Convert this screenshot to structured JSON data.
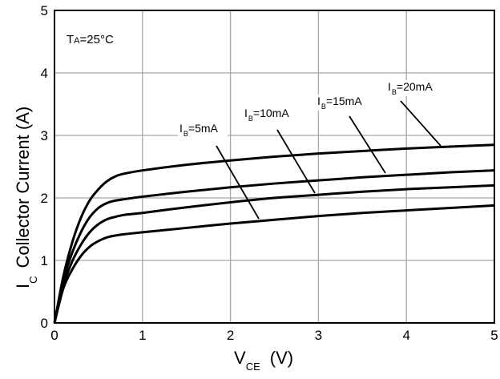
{
  "chart_data": {
    "type": "line",
    "xlim": [
      0,
      5
    ],
    "ylim": [
      0,
      5
    ],
    "xticks": [
      "0",
      "1",
      "2",
      "3",
      "4",
      "5"
    ],
    "yticks": [
      "0",
      "1",
      "2",
      "3",
      "4",
      "5"
    ],
    "xlabel": {
      "main": "V",
      "sub": "CE",
      "unit": "(V)"
    },
    "ylabel": {
      "main": "I",
      "sub": "C",
      "rest": "Collector Current (A)"
    },
    "grid": true,
    "annotation": {
      "main": "T",
      "sub": "A",
      "rest": "=25°C"
    },
    "series": [
      {
        "name": "I_B=5mA",
        "label": {
          "main": "I",
          "sub": "B",
          "rest": "=5mA"
        },
        "x": [
          0,
          0.1,
          0.2,
          0.3,
          0.4,
          0.5,
          0.6,
          0.7,
          0.8,
          1.0,
          1.5,
          2.0,
          2.5,
          3.0,
          3.5,
          4.0,
          4.5,
          5.0
        ],
        "y": [
          0,
          0.55,
          0.85,
          1.07,
          1.22,
          1.31,
          1.37,
          1.4,
          1.42,
          1.45,
          1.52,
          1.59,
          1.65,
          1.71,
          1.76,
          1.8,
          1.84,
          1.88
        ]
      },
      {
        "name": "I_B=10mA",
        "label": {
          "main": "I",
          "sub": "B",
          "rest": "=10mA"
        },
        "x": [
          0,
          0.1,
          0.2,
          0.3,
          0.4,
          0.5,
          0.6,
          0.7,
          0.8,
          1.0,
          1.5,
          2.0,
          2.5,
          3.0,
          3.5,
          4.0,
          4.5,
          5.0
        ],
        "y": [
          0,
          0.6,
          0.98,
          1.25,
          1.45,
          1.58,
          1.66,
          1.7,
          1.73,
          1.76,
          1.85,
          1.93,
          2.0,
          2.05,
          2.1,
          2.14,
          2.17,
          2.2
        ]
      },
      {
        "name": "I_B=15mA",
        "label": {
          "main": "I",
          "sub": "B",
          "rest": "=15mA"
        },
        "x": [
          0,
          0.1,
          0.2,
          0.3,
          0.4,
          0.5,
          0.6,
          0.7,
          0.8,
          1.0,
          1.5,
          2.0,
          2.5,
          3.0,
          3.5,
          4.0,
          4.5,
          5.0
        ],
        "y": [
          0,
          0.68,
          1.12,
          1.45,
          1.69,
          1.84,
          1.92,
          1.96,
          1.98,
          2.02,
          2.1,
          2.17,
          2.23,
          2.28,
          2.33,
          2.37,
          2.41,
          2.44
        ]
      },
      {
        "name": "I_B=20mA",
        "label": {
          "main": "I",
          "sub": "B",
          "rest": "=20mA"
        },
        "x": [
          0,
          0.1,
          0.2,
          0.3,
          0.4,
          0.5,
          0.6,
          0.7,
          0.8,
          1.0,
          1.5,
          2.0,
          2.5,
          3.0,
          3.5,
          4.0,
          4.5,
          5.0
        ],
        "y": [
          0,
          0.74,
          1.28,
          1.68,
          1.96,
          2.14,
          2.27,
          2.35,
          2.39,
          2.44,
          2.53,
          2.6,
          2.66,
          2.71,
          2.75,
          2.79,
          2.82,
          2.85
        ]
      }
    ]
  }
}
